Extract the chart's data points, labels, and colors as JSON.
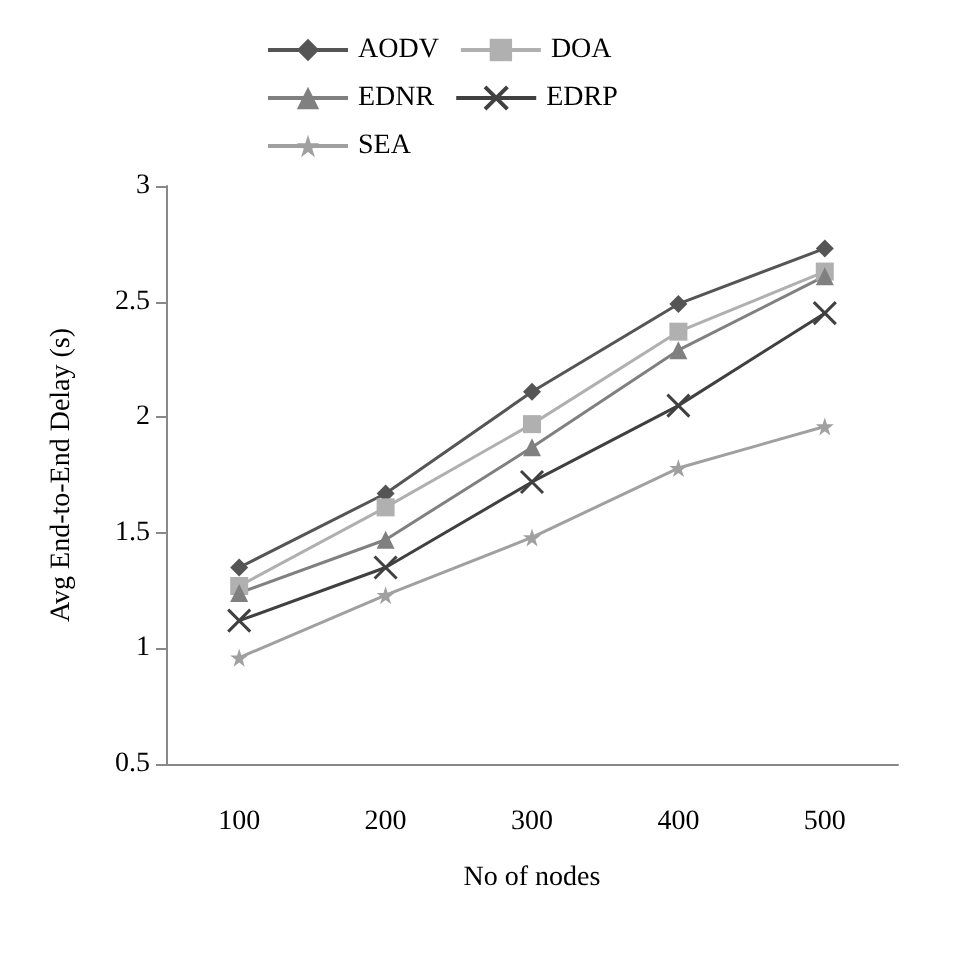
{
  "chart_data": {
    "type": "line",
    "xlabel": "No of nodes",
    "ylabel": "Avg End-to-End Delay (s)",
    "categories": [
      "100",
      "200",
      "300",
      "400",
      "500"
    ],
    "ylim": [
      0.5,
      3
    ],
    "yticks": [
      0.5,
      1,
      1.5,
      2,
      2.5,
      3
    ],
    "grid": false,
    "legend": "top",
    "line_style": "solid",
    "series": [
      {
        "name": "AODV",
        "color": "#555555",
        "marker": "diamond",
        "values": [
          1.35,
          1.67,
          2.11,
          2.49,
          2.73
        ]
      },
      {
        "name": "DOA",
        "color": "#b0b0b0",
        "marker": "square",
        "values": [
          1.27,
          1.61,
          1.97,
          2.37,
          2.63
        ]
      },
      {
        "name": "EDNR",
        "color": "#808080",
        "marker": "triangle",
        "values": [
          1.24,
          1.47,
          1.87,
          2.29,
          2.61
        ]
      },
      {
        "name": "EDRP",
        "color": "#404040",
        "marker": "cross",
        "values": [
          1.12,
          1.35,
          1.72,
          2.05,
          2.45
        ]
      },
      {
        "name": "SEA",
        "color": "#a0a0a0",
        "marker": "star",
        "values": [
          0.96,
          1.23,
          1.48,
          1.78,
          1.96
        ]
      }
    ]
  }
}
